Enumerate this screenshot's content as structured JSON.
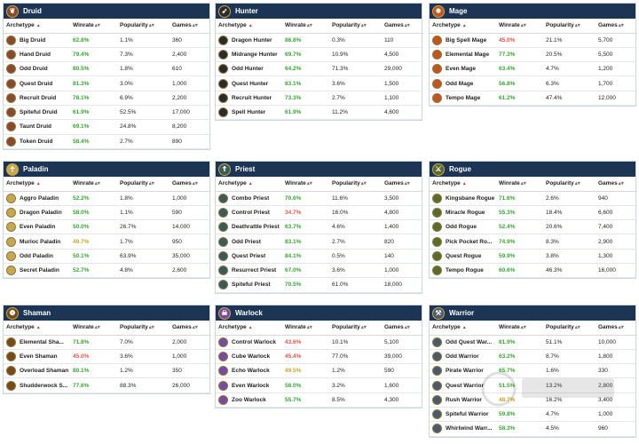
{
  "columns": {
    "archetype": "Archetype",
    "winrate": "Winrate",
    "popularity": "Popularity",
    "games": "Games"
  },
  "colors": {
    "header_bg": "#1c3554",
    "win_good": "#3aa534",
    "win_bad": "#e2574c",
    "win_mid": "#c9a52b"
  },
  "classes": [
    {
      "name": "Druid",
      "icon": "druid-icon",
      "icon_color": "#8a4a2a",
      "rows": [
        {
          "name": "Big Druid",
          "winrate": "62.8%",
          "tone": "green",
          "popularity": "1.1%",
          "games": "360"
        },
        {
          "name": "Hand Druid",
          "winrate": "79.4%",
          "tone": "green",
          "popularity": "7.3%",
          "games": "2,400"
        },
        {
          "name": "Odd Druid",
          "winrate": "80.5%",
          "tone": "green",
          "popularity": "1.8%",
          "games": "610"
        },
        {
          "name": "Quest Druid",
          "winrate": "81.3%",
          "tone": "green",
          "popularity": "3.0%",
          "games": "1,000"
        },
        {
          "name": "Recruit Druid",
          "winrate": "78.1%",
          "tone": "green",
          "popularity": "6.9%",
          "games": "2,200"
        },
        {
          "name": "Spiteful Druid",
          "winrate": "61.9%",
          "tone": "green",
          "popularity": "52.5%",
          "games": "17,000"
        },
        {
          "name": "Taunt Druid",
          "winrate": "69.1%",
          "tone": "green",
          "popularity": "24.8%",
          "games": "8,200"
        },
        {
          "name": "Token Druid",
          "winrate": "58.4%",
          "tone": "green",
          "popularity": "2.7%",
          "games": "890"
        }
      ]
    },
    {
      "name": "Hunter",
      "icon": "hunter-icon",
      "icon_color": "#2b2b2b",
      "rows": [
        {
          "name": "Dragon Hunter",
          "winrate": "86.8%",
          "tone": "green",
          "popularity": "0.3%",
          "games": "110"
        },
        {
          "name": "Midrange Hunter",
          "winrate": "69.7%",
          "tone": "green",
          "popularity": "10.9%",
          "games": "4,500"
        },
        {
          "name": "Odd Hunter",
          "winrate": "64.2%",
          "tone": "green",
          "popularity": "71.3%",
          "games": "29,000"
        },
        {
          "name": "Quest Hunter",
          "winrate": "83.1%",
          "tone": "green",
          "popularity": "3.6%",
          "games": "1,500"
        },
        {
          "name": "Recruit Hunter",
          "winrate": "73.3%",
          "tone": "green",
          "popularity": "2.7%",
          "games": "1,100"
        },
        {
          "name": "Spell Hunter",
          "winrate": "61.9%",
          "tone": "green",
          "popularity": "11.2%",
          "games": "4,600"
        }
      ]
    },
    {
      "name": "Mage",
      "icon": "mage-icon",
      "icon_color": "#c2561b",
      "rows": [
        {
          "name": "Big Spell Mage",
          "winrate": "45.0%",
          "tone": "red",
          "popularity": "21.1%",
          "games": "5,700"
        },
        {
          "name": "Elemental Mage",
          "winrate": "77.3%",
          "tone": "green",
          "popularity": "20.5%",
          "games": "5,500"
        },
        {
          "name": "Even Mage",
          "winrate": "63.4%",
          "tone": "green",
          "popularity": "4.7%",
          "games": "1,200"
        },
        {
          "name": "Odd Mage",
          "winrate": "56.8%",
          "tone": "green",
          "popularity": "6.3%",
          "games": "1,700"
        },
        {
          "name": "Tempo Mage",
          "winrate": "61.2%",
          "tone": "green",
          "popularity": "47.4%",
          "games": "12,000"
        }
      ]
    },
    {
      "name": "Paladin",
      "icon": "paladin-icon",
      "icon_color": "#c9a74a",
      "rows": [
        {
          "name": "Aggro Paladin",
          "winrate": "52.2%",
          "tone": "green",
          "popularity": "1.8%",
          "games": "1,000"
        },
        {
          "name": "Dragon Paladin",
          "winrate": "58.0%",
          "tone": "green",
          "popularity": "1.1%",
          "games": "590"
        },
        {
          "name": "Even Paladin",
          "winrate": "50.0%",
          "tone": "green",
          "popularity": "26.7%",
          "games": "14,000"
        },
        {
          "name": "Murloc Paladin",
          "winrate": "49.7%",
          "tone": "yellow",
          "popularity": "1.7%",
          "games": "950"
        },
        {
          "name": "Odd Paladin",
          "winrate": "50.1%",
          "tone": "green",
          "popularity": "63.9%",
          "games": "35,000"
        },
        {
          "name": "Secret Paladin",
          "winrate": "52.7%",
          "tone": "green",
          "popularity": "4.8%",
          "games": "2,600"
        }
      ]
    },
    {
      "name": "Priest",
      "icon": "priest-icon",
      "icon_color": "#3b5a5a",
      "rows": [
        {
          "name": "Combo Priest",
          "winrate": "70.6%",
          "tone": "green",
          "popularity": "11.6%",
          "games": "3,500"
        },
        {
          "name": "Control Priest",
          "winrate": "34.7%",
          "tone": "red",
          "popularity": "16.0%",
          "games": "4,800"
        },
        {
          "name": "Deathrattle Priest",
          "winrate": "63.7%",
          "tone": "green",
          "popularity": "4.6%",
          "games": "1,400"
        },
        {
          "name": "Odd Priest",
          "winrate": "83.1%",
          "tone": "green",
          "popularity": "2.7%",
          "games": "820"
        },
        {
          "name": "Quest Priest",
          "winrate": "84.1%",
          "tone": "green",
          "popularity": "0.5%",
          "games": "140"
        },
        {
          "name": "Resurrect Priest",
          "winrate": "67.0%",
          "tone": "green",
          "popularity": "3.6%",
          "games": "1,000"
        },
        {
          "name": "Spiteful Priest",
          "winrate": "70.5%",
          "tone": "green",
          "popularity": "61.0%",
          "games": "18,000"
        }
      ]
    },
    {
      "name": "Rogue",
      "icon": "rogue-icon",
      "icon_color": "#5b6b2a",
      "rows": [
        {
          "name": "Kingsbane Rogue",
          "winrate": "71.6%",
          "tone": "green",
          "popularity": "2.6%",
          "games": "940"
        },
        {
          "name": "Miracle Rogue",
          "winrate": "55.3%",
          "tone": "green",
          "popularity": "18.4%",
          "games": "6,600"
        },
        {
          "name": "Odd Rogue",
          "winrate": "52.4%",
          "tone": "green",
          "popularity": "20.6%",
          "games": "7,400"
        },
        {
          "name": "Pick Pocket Ro...",
          "winrate": "74.9%",
          "tone": "green",
          "popularity": "8.3%",
          "games": "2,900"
        },
        {
          "name": "Quest Rogue",
          "winrate": "59.9%",
          "tone": "green",
          "popularity": "3.8%",
          "games": "1,300"
        },
        {
          "name": "Tempo Rogue",
          "winrate": "60.6%",
          "tone": "green",
          "popularity": "46.3%",
          "games": "16,000"
        }
      ]
    },
    {
      "name": "Shaman",
      "icon": "shaman-icon",
      "icon_color": "#7a4a14",
      "rows": [
        {
          "name": "Elemental Sha...",
          "winrate": "71.8%",
          "tone": "green",
          "popularity": "7.0%",
          "games": "2,000"
        },
        {
          "name": "Even Shaman",
          "winrate": "45.0%",
          "tone": "red",
          "popularity": "3.6%",
          "games": "1,000"
        },
        {
          "name": "Overload Shaman",
          "winrate": "80.1%",
          "tone": "green",
          "popularity": "1.2%",
          "games": "350"
        },
        {
          "name": "Shudderwock S...",
          "winrate": "77.6%",
          "tone": "green",
          "popularity": "88.3%",
          "games": "26,000"
        }
      ]
    },
    {
      "name": "Warlock",
      "icon": "warlock-icon",
      "icon_color": "#7a4aa0",
      "rows": [
        {
          "name": "Control Warlock",
          "winrate": "43.6%",
          "tone": "red",
          "popularity": "10.1%",
          "games": "5,100"
        },
        {
          "name": "Cube Warlock",
          "winrate": "45.4%",
          "tone": "red",
          "popularity": "77.0%",
          "games": "39,000"
        },
        {
          "name": "Echo Warlock",
          "winrate": "49.5%",
          "tone": "yellow",
          "popularity": "1.2%",
          "games": "590"
        },
        {
          "name": "Even Warlock",
          "winrate": "58.0%",
          "tone": "green",
          "popularity": "3.2%",
          "games": "1,600"
        },
        {
          "name": "Zoo Warlock",
          "winrate": "55.7%",
          "tone": "green",
          "popularity": "8.5%",
          "games": "4,300"
        }
      ]
    },
    {
      "name": "Warrior",
      "icon": "warrior-icon",
      "icon_color": "#4a5a6a",
      "rows": [
        {
          "name": "Odd Quest War...",
          "winrate": "81.9%",
          "tone": "green",
          "popularity": "51.1%",
          "games": "10,000"
        },
        {
          "name": "Odd Warrior",
          "winrate": "63.2%",
          "tone": "green",
          "popularity": "8.7%",
          "games": "1,800"
        },
        {
          "name": "Pirate Warrior",
          "winrate": "65.7%",
          "tone": "green",
          "popularity": "1.6%",
          "games": "330"
        },
        {
          "name": "Quest Warrior",
          "winrate": "51.5%",
          "tone": "green",
          "popularity": "13.2%",
          "games": "2,800"
        },
        {
          "name": "Rush Warrior",
          "winrate": "48.7%",
          "tone": "yellow",
          "popularity": "16.2%",
          "games": "3,400"
        },
        {
          "name": "Spiteful Warrior",
          "winrate": "59.8%",
          "tone": "green",
          "popularity": "4.7%",
          "games": "1,000"
        },
        {
          "name": "Whirlwind Warr...",
          "winrate": "58.3%",
          "tone": "green",
          "popularity": "4.5%",
          "games": "960"
        }
      ]
    }
  ]
}
